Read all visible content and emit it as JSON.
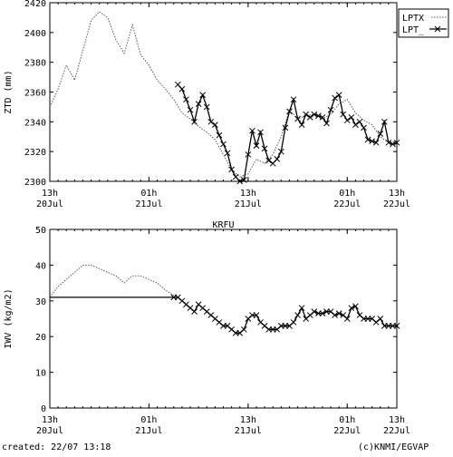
{
  "footer": {
    "created": "created: 22/07 13:18",
    "credit": "(c)KNMI/EGVAP"
  },
  "chart_data": [
    {
      "type": "line",
      "ylabel": "ZTD (mm)",
      "ylim": [
        2300,
        2420
      ],
      "yticks": [
        2300,
        2320,
        2340,
        2360,
        2380,
        2400,
        2420
      ],
      "xlim": [
        13,
        55
      ],
      "xticks": [
        {
          "x": 13,
          "line1": "13h",
          "line2": "20Jul"
        },
        {
          "x": 25,
          "line1": "01h",
          "line2": "21Jul"
        },
        {
          "x": 37,
          "line1": "13h",
          "line2": "21Jul"
        },
        {
          "x": 49,
          "line1": "01h",
          "line2": "22Jul"
        },
        {
          "x": 55,
          "line1": "13h",
          "line2": "22Jul"
        }
      ],
      "legend_position": "top-right",
      "grid": false,
      "series": [
        {
          "name": "LPTX",
          "style": "dotted",
          "x": [
            13,
            14,
            15,
            16,
            17,
            18,
            19,
            20,
            21,
            22,
            23,
            24,
            25,
            26,
            27,
            28,
            29,
            30,
            31,
            32,
            33,
            34,
            35,
            36,
            37,
            38,
            39,
            40,
            41,
            42,
            43,
            44,
            45,
            46,
            47,
            48,
            49,
            50,
            51,
            52,
            53,
            54,
            55
          ],
          "values": [
            2350,
            2362,
            2378,
            2368,
            2388,
            2408,
            2414,
            2410,
            2395,
            2386,
            2405,
            2385,
            2378,
            2368,
            2362,
            2355,
            2346,
            2342,
            2337,
            2333,
            2328,
            2318,
            2308,
            2303,
            2305,
            2315,
            2312,
            2318,
            2330,
            2348,
            2342,
            2344,
            2345,
            2342,
            2345,
            2352,
            2355,
            2346,
            2341,
            2338,
            2330,
            2326,
            2327
          ]
        },
        {
          "name": "LPT_",
          "style": "solid-x",
          "x": [
            28.5,
            29,
            29.5,
            30,
            30.5,
            31,
            31.5,
            32,
            32.5,
            33,
            33.5,
            34,
            34.5,
            35,
            35.5,
            36,
            36.5,
            37,
            37.5,
            38,
            38.5,
            39,
            39.5,
            40,
            40.5,
            41,
            41.5,
            42,
            42.5,
            43,
            43.5,
            44,
            44.5,
            45,
            45.5,
            46,
            46.5,
            47,
            47.5,
            48,
            48.5,
            49,
            49.5,
            50,
            50.5,
            51,
            51.5,
            52,
            52.5,
            53,
            53.5,
            54,
            54.5,
            55
          ],
          "values": [
            2365,
            2362,
            2355,
            2348,
            2340,
            2352,
            2358,
            2350,
            2340,
            2338,
            2331,
            2325,
            2319,
            2308,
            2303,
            2300,
            2301,
            2318,
            2334,
            2324,
            2333,
            2322,
            2314,
            2312,
            2315,
            2320,
            2336,
            2347,
            2355,
            2342,
            2338,
            2345,
            2343,
            2345,
            2344,
            2343,
            2339,
            2348,
            2356,
            2358,
            2345,
            2341,
            2343,
            2338,
            2340,
            2336,
            2328,
            2327,
            2326,
            2332,
            2340,
            2326,
            2325,
            2326
          ]
        }
      ]
    },
    {
      "type": "line",
      "title": "KRFU",
      "ylabel": "IWV (kg/m2)",
      "ylim": [
        0,
        50
      ],
      "yticks": [
        0,
        10,
        20,
        30,
        40,
        50
      ],
      "xlim": [
        13,
        55
      ],
      "xticks": [
        {
          "x": 13,
          "line1": "13h",
          "line2": "20Jul"
        },
        {
          "x": 25,
          "line1": "01h",
          "line2": "21Jul"
        },
        {
          "x": 37,
          "line1": "13h",
          "line2": "21Jul"
        },
        {
          "x": 49,
          "line1": "01h",
          "line2": "22Jul"
        },
        {
          "x": 55,
          "line1": "13h",
          "line2": "22Jul"
        }
      ],
      "grid": false,
      "series": [
        {
          "name": "LPTX",
          "style": "dotted",
          "x": [
            13,
            14,
            15,
            16,
            17,
            18,
            19,
            20,
            21,
            22,
            23,
            24,
            25,
            26,
            27,
            28
          ],
          "values": [
            31,
            34,
            36,
            38,
            40,
            40,
            39,
            38,
            37,
            35,
            37,
            37,
            36,
            35,
            33,
            31.5
          ]
        },
        {
          "name": "LPT_",
          "style": "solid-x",
          "x": [
            13,
            28,
            28.5,
            29,
            29.5,
            30,
            30.5,
            31,
            31.5,
            32,
            32.5,
            33,
            33.5,
            34,
            34.5,
            35,
            35.5,
            36,
            36.5,
            37,
            37.5,
            38,
            38.5,
            39,
            39.5,
            40,
            40.5,
            41,
            41.5,
            42,
            42.5,
            43,
            43.5,
            44,
            44.5,
            45,
            45.5,
            46,
            46.5,
            47,
            47.5,
            48,
            48.5,
            49,
            49.5,
            50,
            50.5,
            51,
            51.5,
            52,
            52.5,
            53,
            53.5,
            54,
            54.5,
            55
          ],
          "values": [
            31,
            31,
            31,
            30,
            29,
            28,
            27,
            29,
            28,
            27,
            26,
            25,
            24,
            23,
            23,
            22,
            21,
            21,
            22,
            25,
            26,
            26,
            24,
            23,
            22,
            22,
            22,
            23,
            23,
            23,
            24,
            26,
            28,
            25,
            26,
            27,
            26.5,
            26.5,
            27,
            27,
            26,
            26.5,
            26,
            25,
            28,
            28.5,
            26,
            25,
            25,
            25,
            24,
            25,
            23,
            23,
            23,
            23
          ]
        }
      ]
    }
  ]
}
